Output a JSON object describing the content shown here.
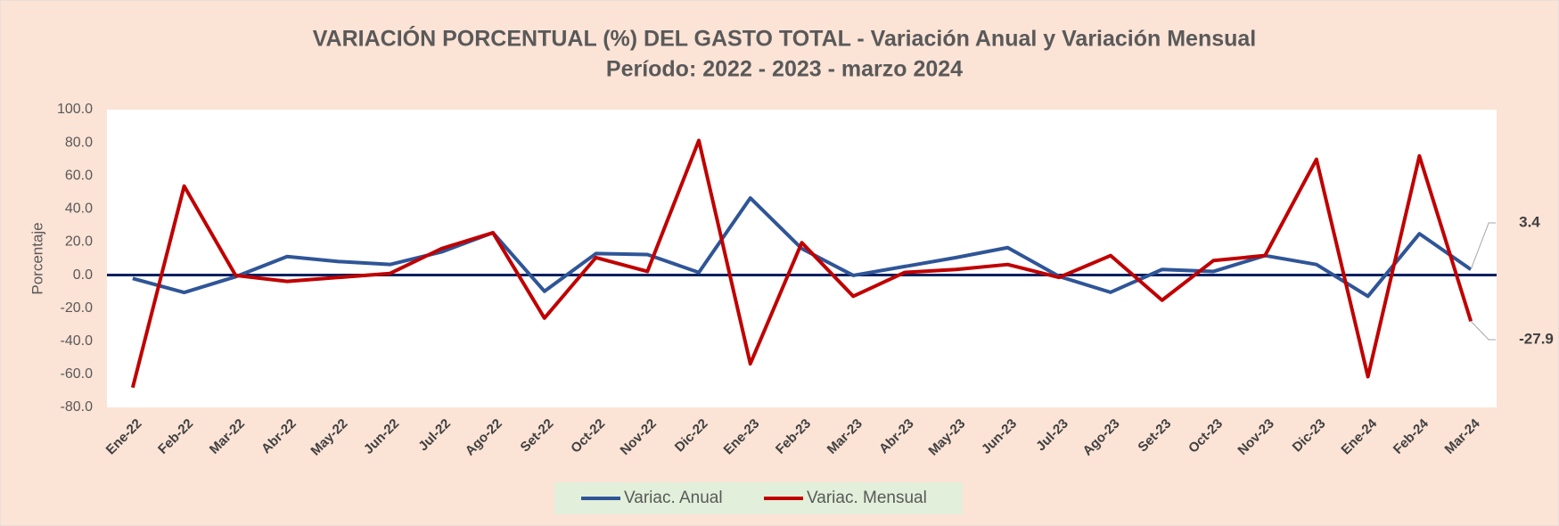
{
  "chart_data": {
    "type": "line",
    "title": "VARIACIÓN PORCENTUAL (%) DEL GASTO TOTAL  - Variación Anual y Variación Mensual",
    "subtitle": "Período: 2022 - 2023 - marzo 2024",
    "y_label": "Porcentaje",
    "categories": [
      "Ene-22",
      "Feb-22",
      "Mar-22",
      "Abr-22",
      "May-22",
      "Jun-22",
      "Jul-22",
      "Ago-22",
      "Set-22",
      "Oct-22",
      "Nov-22",
      "Dic-22",
      "Ene-23",
      "Feb-23",
      "Mar-23",
      "Abr-23",
      "May-23",
      "Jun-23",
      "Jul-23",
      "Ago-23",
      "Set-23",
      "Oct-23",
      "Nov-23",
      "Dic-23",
      "Ene-24",
      "Feb-24",
      "Mar-24"
    ],
    "series": [
      {
        "name": "Variac. Anual",
        "color": "#2f5597",
        "values": [
          -2,
          -10.5,
          -1,
          11.2,
          8.2,
          6.4,
          14,
          25.6,
          -9.8,
          13,
          12.4,
          1.6,
          46.6,
          16,
          -0.2,
          5.2,
          10.6,
          16.6,
          -0.8,
          -10.4,
          3.4,
          2.2,
          11.8,
          6.4,
          -12.8,
          25,
          3.4
        ]
      },
      {
        "name": "Variac. Mensual",
        "color": "#c00000",
        "values": [
          -68,
          53.8,
          -0.2,
          -3.8,
          -1.4,
          1,
          16,
          25.6,
          -26,
          10.6,
          2.2,
          81.4,
          -53.6,
          19.6,
          -12.8,
          1.6,
          3.4,
          6.4,
          -1.4,
          11.8,
          -15.2,
          8.8,
          11.8,
          70,
          -61.4,
          72,
          -27.9
        ]
      }
    ],
    "ylim": [
      -80,
      100
    ],
    "yticks": [
      {
        "value": -80,
        "label": "-80.0"
      },
      {
        "value": -60,
        "label": "-60.0"
      },
      {
        "value": -40,
        "label": "-40.0"
      },
      {
        "value": -20,
        "label": "-20.0"
      },
      {
        "value": 0,
        "label": "0.0"
      },
      {
        "value": 20,
        "label": "20.0"
      },
      {
        "value": 40,
        "label": "40.0"
      },
      {
        "value": 60,
        "label": "60.0"
      },
      {
        "value": 80,
        "label": "80.0"
      },
      {
        "value": 100,
        "label": "100.0"
      }
    ],
    "grid": false,
    "legend": "bottom"
  }
}
